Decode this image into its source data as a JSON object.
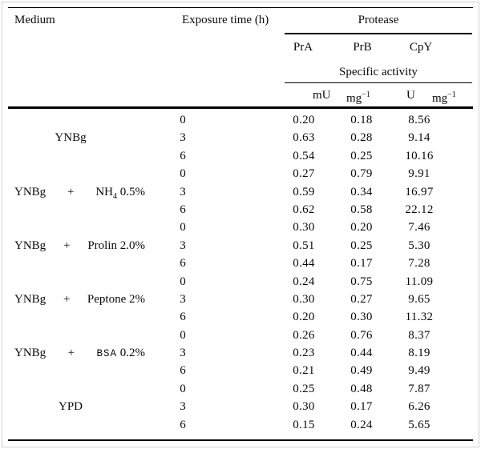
{
  "page": {
    "background": "#ffffff",
    "rule_color": "#000000",
    "frame_color": "#cfcfcf",
    "text_color": "#0a0a0a"
  },
  "header": {
    "medium_label": "Medium",
    "exposure_label": "Exposure time (h)",
    "protease_label": "Protease",
    "enzymes": [
      "PrA",
      "PrB",
      "CpY"
    ],
    "specific_activity_label": "Specific activity",
    "units": {
      "pra_prb_unit": "mU",
      "mg_base": "mg",
      "mg_exponent": "−1",
      "cpy_unit": "U"
    }
  },
  "groups": [
    {
      "medium": {
        "align": "center",
        "base": "YNBg"
      },
      "rows": [
        {
          "exposure": "0",
          "pra": "0.20",
          "prb": "0.18",
          "cpy": "8.56"
        },
        {
          "exposure": "3",
          "pra": "0.63",
          "prb": "0.28",
          "cpy": "9.14"
        },
        {
          "exposure": "6",
          "pra": "0.54",
          "prb": "0.25",
          "cpy": "10.16"
        }
      ]
    },
    {
      "medium": {
        "align": "justify",
        "base": "YNBg",
        "plus": "+",
        "additive": [
          {
            "t": "NH"
          },
          {
            "t": "4",
            "style": "sub"
          },
          {
            "t": " 0.5%"
          }
        ]
      },
      "rows": [
        {
          "exposure": "0",
          "pra": "0.27",
          "prb": "0.79",
          "cpy": "9.91"
        },
        {
          "exposure": "3",
          "pra": "0.59",
          "prb": "0.34",
          "cpy": "16.97"
        },
        {
          "exposure": "6",
          "pra": "0.62",
          "prb": "0.58",
          "cpy": "22.12"
        }
      ]
    },
    {
      "medium": {
        "align": "justify",
        "base": "YNBg",
        "plus": "+",
        "additive": [
          {
            "t": "Prolin 2.0%"
          }
        ]
      },
      "rows": [
        {
          "exposure": "0",
          "pra": "0.30",
          "prb": "0.20",
          "cpy": "7.46"
        },
        {
          "exposure": "3",
          "pra": "0.51",
          "prb": "0.25",
          "cpy": "5.30"
        },
        {
          "exposure": "6",
          "pra": "0.44",
          "prb": "0.17",
          "cpy": "7.28"
        }
      ]
    },
    {
      "medium": {
        "align": "justify",
        "base": "YNBg",
        "plus": "+",
        "additive": [
          {
            "t": "Peptone 2%"
          }
        ]
      },
      "rows": [
        {
          "exposure": "0",
          "pra": "0.24",
          "prb": "0.75",
          "cpy": "11.09"
        },
        {
          "exposure": "3",
          "pra": "0.30",
          "prb": "0.27",
          "cpy": "9.65"
        },
        {
          "exposure": "6",
          "pra": "0.20",
          "prb": "0.30",
          "cpy": "11.32"
        }
      ]
    },
    {
      "medium": {
        "align": "justify",
        "base": "YNBg",
        "plus": "+",
        "additive": [
          {
            "t": "BSA",
            "style": "mono"
          },
          {
            "t": " 0.2%"
          }
        ]
      },
      "rows": [
        {
          "exposure": "0",
          "pra": "0.26",
          "prb": "0.76",
          "cpy": "8.37"
        },
        {
          "exposure": "3",
          "pra": "0.23",
          "prb": "0.44",
          "cpy": "8.19"
        },
        {
          "exposure": "6",
          "pra": "0.21",
          "prb": "0.49",
          "cpy": "9.49"
        }
      ]
    },
    {
      "medium": {
        "align": "center",
        "base": "YPD"
      },
      "rows": [
        {
          "exposure": "0",
          "pra": "0.25",
          "prb": "0.48",
          "cpy": "7.87"
        },
        {
          "exposure": "3",
          "pra": "0.30",
          "prb": "0.17",
          "cpy": "6.26"
        },
        {
          "exposure": "6",
          "pra": "0.15",
          "prb": "0.24",
          "cpy": "5.65"
        }
      ]
    }
  ]
}
